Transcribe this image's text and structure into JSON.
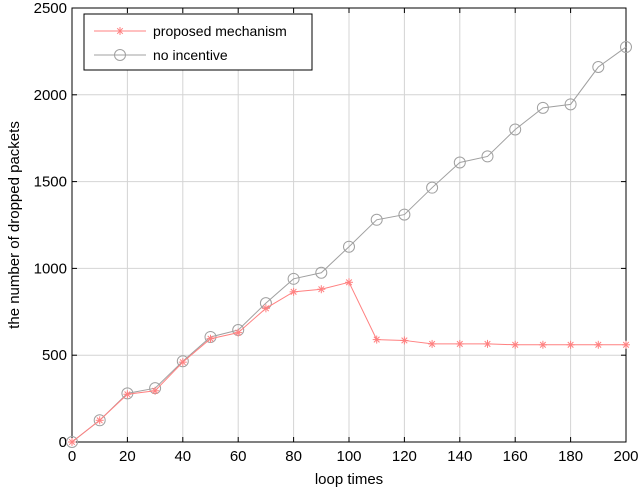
{
  "chart_data": {
    "type": "line",
    "title": "",
    "xlabel": "loop times",
    "ylabel": "the number of dropped packets",
    "xlim": [
      0,
      200
    ],
    "ylim": [
      0,
      2500
    ],
    "x_ticks": [
      0,
      20,
      40,
      60,
      80,
      100,
      120,
      140,
      160,
      180,
      200
    ],
    "y_ticks": [
      0,
      500,
      1000,
      1500,
      2000,
      2500
    ],
    "grid": true,
    "legend_position": "top-left",
    "x": [
      0,
      10,
      20,
      30,
      40,
      50,
      60,
      70,
      80,
      90,
      100,
      110,
      120,
      130,
      140,
      150,
      160,
      170,
      180,
      190,
      200
    ],
    "series": [
      {
        "name": "proposed mechanism",
        "color": "#ff8080",
        "marker": "star",
        "values": [
          0,
          125,
          275,
          295,
          460,
          595,
          630,
          770,
          865,
          880,
          920,
          590,
          585,
          565,
          565,
          565,
          560,
          560,
          560,
          560,
          560
        ]
      },
      {
        "name": "no incentive",
        "color": "#a0a0a0",
        "marker": "circle",
        "values": [
          0,
          125,
          280,
          310,
          465,
          605,
          645,
          800,
          940,
          975,
          1125,
          1280,
          1310,
          1465,
          1610,
          1645,
          1800,
          1925,
          1945,
          2160,
          2275
        ]
      }
    ]
  }
}
